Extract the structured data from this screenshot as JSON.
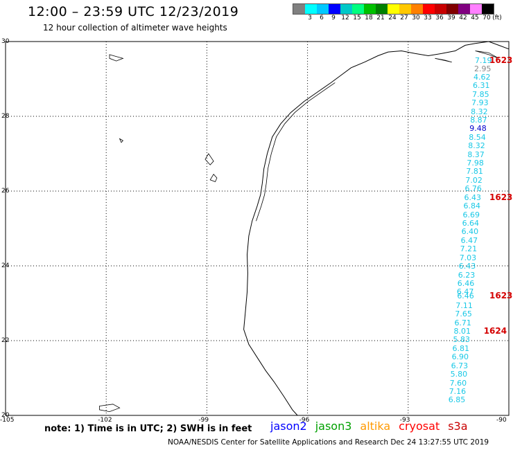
{
  "header": {
    "title": "12:00 – 23:59 UTC 12/23/2019",
    "subtitle": "12 hour collection of altimeter wave heights"
  },
  "legend": {
    "unit": "(ft)",
    "bins": [
      {
        "label": "",
        "color": "#808080"
      },
      {
        "label": "3",
        "color": "#00ffff"
      },
      {
        "label": "6",
        "color": "#00c8ff"
      },
      {
        "label": "9",
        "color": "#0000ff"
      },
      {
        "label": "12",
        "color": "#00c8c8"
      },
      {
        "label": "15",
        "color": "#00ff80"
      },
      {
        "label": "18",
        "color": "#00c000"
      },
      {
        "label": "21",
        "color": "#008000"
      },
      {
        "label": "24",
        "color": "#ffff00"
      },
      {
        "label": "27",
        "color": "#ffc800"
      },
      {
        "label": "30",
        "color": "#ff8000"
      },
      {
        "label": "33",
        "color": "#ff0000"
      },
      {
        "label": "36",
        "color": "#c80000"
      },
      {
        "label": "39",
        "color": "#800000"
      },
      {
        "label": "42",
        "color": "#800080"
      },
      {
        "label": "45",
        "color": "#ff80ff"
      },
      {
        "label": "70",
        "color": "#000000"
      }
    ]
  },
  "map": {
    "lon_range": [
      -105,
      -90
    ],
    "lat_range": [
      20,
      30
    ],
    "lon_ticks": [
      "-105",
      "-102",
      "-99",
      "-96",
      "-93",
      "-90"
    ],
    "lat_ticks": [
      "30",
      "28",
      "26",
      "24",
      "22",
      "20"
    ],
    "coastline_color": "#000000",
    "grid_color": "#000000"
  },
  "wave_heights": [
    {
      "lat": 29.49,
      "lon": -90.76,
      "value": "7.19",
      "color": "#19c8e6"
    },
    {
      "lat": 29.26,
      "lon": -90.78,
      "value": "2.95",
      "color": "#888888"
    },
    {
      "lat": 29.04,
      "lon": -90.8,
      "value": "4.62",
      "color": "#19c8e6"
    },
    {
      "lat": 28.81,
      "lon": -90.82,
      "value": "6.31",
      "color": "#19c8e6"
    },
    {
      "lat": 28.58,
      "lon": -90.84,
      "value": "7.85",
      "color": "#19c8e6"
    },
    {
      "lat": 28.35,
      "lon": -90.86,
      "value": "7.93",
      "color": "#19c8e6"
    },
    {
      "lat": 28.12,
      "lon": -90.88,
      "value": "8.32",
      "color": "#19c8e6"
    },
    {
      "lat": 27.89,
      "lon": -90.9,
      "value": "8.87",
      "color": "#19c8e6"
    },
    {
      "lat": 27.66,
      "lon": -90.92,
      "value": "9.48",
      "color": "#0000cc"
    },
    {
      "lat": 27.43,
      "lon": -90.94,
      "value": "8.54",
      "color": "#19c8e6"
    },
    {
      "lat": 27.2,
      "lon": -90.96,
      "value": "8.32",
      "color": "#19c8e6"
    },
    {
      "lat": 26.97,
      "lon": -90.98,
      "value": "8.37",
      "color": "#19c8e6"
    },
    {
      "lat": 26.74,
      "lon": -91.0,
      "value": "7.98",
      "color": "#19c8e6"
    },
    {
      "lat": 26.51,
      "lon": -91.02,
      "value": "7.81",
      "color": "#19c8e6"
    },
    {
      "lat": 26.28,
      "lon": -91.04,
      "value": "7.02",
      "color": "#19c8e6"
    },
    {
      "lat": 26.05,
      "lon": -91.06,
      "value": "6.76",
      "color": "#19c8e6"
    },
    {
      "lat": 25.82,
      "lon": -91.08,
      "value": "6.43",
      "color": "#19c8e6"
    },
    {
      "lat": 25.59,
      "lon": -91.1,
      "value": "6.84",
      "color": "#19c8e6"
    },
    {
      "lat": 25.36,
      "lon": -91.12,
      "value": "6.69",
      "color": "#19c8e6"
    },
    {
      "lat": 25.13,
      "lon": -91.14,
      "value": "6.64",
      "color": "#19c8e6"
    },
    {
      "lat": 24.9,
      "lon": -91.16,
      "value": "6.40",
      "color": "#19c8e6"
    },
    {
      "lat": 24.67,
      "lon": -91.18,
      "value": "6.47",
      "color": "#19c8e6"
    },
    {
      "lat": 24.44,
      "lon": -91.2,
      "value": "7.21",
      "color": "#19c8e6"
    },
    {
      "lat": 24.21,
      "lon": -91.22,
      "value": "7.03",
      "color": "#19c8e6"
    },
    {
      "lat": 23.98,
      "lon": -91.24,
      "value": "6.43",
      "color": "#19c8e6"
    },
    {
      "lat": 23.75,
      "lon": -91.26,
      "value": "6.23",
      "color": "#19c8e6"
    },
    {
      "lat": 23.52,
      "lon": -91.28,
      "value": "6.46",
      "color": "#19c8e6"
    },
    {
      "lat": 23.29,
      "lon": -91.3,
      "value": "6.47",
      "color": "#19c8e6"
    },
    {
      "lat": 23.18,
      "lon": -91.29,
      "value": "6.46",
      "color": "#19c8e6"
    },
    {
      "lat": 22.93,
      "lon": -91.33,
      "value": "7.11",
      "color": "#19c8e6"
    },
    {
      "lat": 22.7,
      "lon": -91.35,
      "value": "7.65",
      "color": "#19c8e6"
    },
    {
      "lat": 22.47,
      "lon": -91.37,
      "value": "6.71",
      "color": "#19c8e6"
    },
    {
      "lat": 22.24,
      "lon": -91.39,
      "value": "8.01",
      "color": "#19c8e6"
    },
    {
      "lat": 22.01,
      "lon": -91.41,
      "value": "5.83",
      "color": "#19c8e6"
    },
    {
      "lat": 21.78,
      "lon": -91.43,
      "value": "6.81",
      "color": "#19c8e6"
    },
    {
      "lat": 21.55,
      "lon": -91.45,
      "value": "6.90",
      "color": "#19c8e6"
    },
    {
      "lat": 21.32,
      "lon": -91.47,
      "value": "6.73",
      "color": "#19c8e6"
    },
    {
      "lat": 21.09,
      "lon": -91.49,
      "value": "5.80",
      "color": "#19c8e6"
    },
    {
      "lat": 20.86,
      "lon": -91.51,
      "value": "7.60",
      "color": "#19c8e6"
    },
    {
      "lat": 20.63,
      "lon": -91.53,
      "value": "7.16",
      "color": "#19c8e6"
    },
    {
      "lat": 20.4,
      "lon": -91.55,
      "value": "6.85",
      "color": "#19c8e6"
    }
  ],
  "pass_times": [
    {
      "lat": 29.49,
      "lon": -90.1,
      "time": "1623"
    },
    {
      "lat": 25.82,
      "lon": -90.35,
      "time": "1623"
    },
    {
      "lat": 23.18,
      "lon": -90.55,
      "time": "1623"
    },
    {
      "lat": 22.24,
      "lon": -90.75,
      "time": "1624"
    }
  ],
  "footer": {
    "note": "note:  1) Time is in UTC; 2) SWH is in feet",
    "satellites": [
      {
        "name": "jason2",
        "color": "#0000ff"
      },
      {
        "name": "jason3",
        "color": "#00a000"
      },
      {
        "name": "altika",
        "color": "#ff9900"
      },
      {
        "name": "cryosat",
        "color": "#ff0000"
      },
      {
        "name": "s3a",
        "color": "#c80000"
      }
    ],
    "credit": "NOAA/NESDIS Center for Satellite Applications and Research     Dec 24 13:27:55 UTC 2019"
  }
}
